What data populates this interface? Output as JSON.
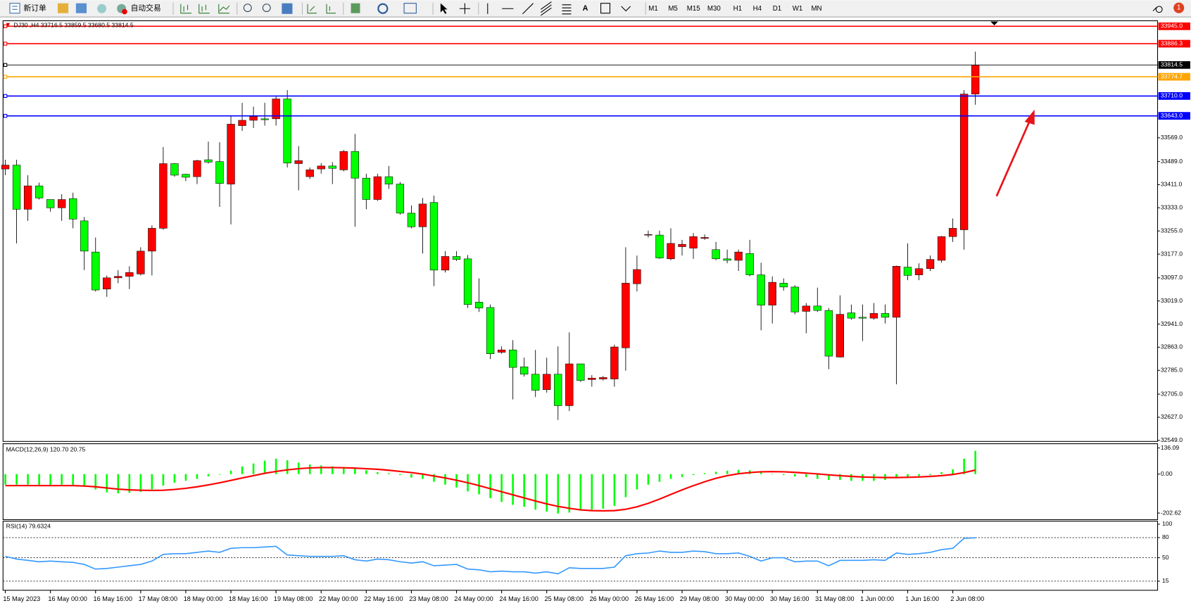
{
  "toolbar": {
    "new_order": "新订单",
    "auto_trading": "自动交易",
    "text_tool": "A",
    "timeframes": [
      "M1",
      "M5",
      "M15",
      "M30",
      "H1",
      "H4",
      "D1",
      "W1",
      "MN"
    ],
    "badge": "1"
  },
  "chart_data": [
    {
      "type": "candlestick",
      "title": "DJ30 ,H4  33716.5 33859.5 33680.5 33814.5",
      "categories": [
        "15 May 2023",
        null,
        null,
        null,
        "16 May 00:00",
        null,
        null,
        null,
        "16 May 16:00",
        null,
        null,
        null,
        "17 May 08:00",
        null,
        null,
        null,
        "18 May 00:00",
        null,
        null,
        null,
        "18 May 16:00",
        null,
        null,
        null,
        "19 May 08:00",
        null,
        null,
        null,
        "22 May 00:00",
        null,
        null,
        null,
        "22 May 16:00",
        null,
        null,
        null,
        "23 May 08:00",
        null,
        null,
        null,
        "24 May 00:00",
        null,
        null,
        null,
        "24 May 16:00",
        null,
        null,
        null,
        "25 May 08:00",
        null,
        null,
        null,
        "26 May 00:00",
        null,
        null,
        null,
        "26 May 16:00",
        null,
        null,
        null,
        "29 May 08:00",
        null,
        null,
        null,
        "30 May 00:00",
        null,
        null,
        null,
        "30 May 16:00",
        null,
        null,
        null,
        "31 May 08:00",
        null,
        null,
        null,
        "1 Jun 00:00",
        null,
        null,
        null,
        "1 Jun 16:00",
        null,
        null,
        null,
        "2 Jun 08:00",
        null,
        null
      ],
      "open": [
        33464,
        33477,
        33328,
        33407,
        33361,
        33333,
        33364,
        33289,
        33184,
        33059,
        33097,
        33102,
        33110,
        33187,
        33264,
        33482,
        33446,
        33438,
        33495,
        33489,
        33413,
        33610,
        33628,
        33633,
        33633,
        33700,
        33482,
        33438,
        33464,
        33474,
        33461,
        33523,
        33433,
        33361,
        33438,
        33413,
        33315,
        33269,
        33351,
        33123,
        33169,
        33161,
        33015,
        32997,
        32846,
        32854,
        32797,
        32772,
        32720,
        32772,
        32666,
        32807,
        32754,
        32756,
        32756,
        32861,
        33077,
        33241,
        33241,
        33161,
        33202,
        33197,
        33230,
        33192,
        33161,
        33156,
        33179,
        33107,
        33005,
        33079,
        33066,
        32984,
        33002,
        32987,
        32830,
        32979,
        32964,
        32961,
        32977,
        32964,
        33133,
        33107,
        33128,
        33156,
        33236,
        33259,
        33716.5
      ],
      "high": [
        33495,
        33495,
        33443,
        33418,
        33361,
        33379,
        33384,
        33302,
        33233,
        33105,
        33123,
        33136,
        33200,
        33274,
        33538,
        33484,
        33448,
        33495,
        33556,
        33554,
        33643,
        33687,
        33674,
        33687,
        33710,
        33730,
        33541,
        33469,
        33484,
        33487,
        33528,
        33582,
        33448,
        33448,
        33474,
        33420,
        33341,
        33366,
        33374,
        33187,
        33187,
        33174,
        33095,
        33007,
        32866,
        32887,
        32828,
        32854,
        32828,
        32866,
        32913,
        32807,
        32769,
        32766,
        32872,
        33200,
        33172,
        33256,
        33256,
        33264,
        33225,
        33248,
        33243,
        33218,
        33192,
        33192,
        33225,
        33148,
        33102,
        33095,
        33072,
        33012,
        33064,
        32995,
        33038,
        33007,
        33007,
        33012,
        33007,
        33138,
        33213,
        33146,
        33172,
        33238,
        33297,
        33730,
        33859.5
      ],
      "low": [
        33443,
        33213,
        33289,
        33361,
        33320,
        33289,
        33264,
        33123,
        33051,
        33033,
        33079,
        33059,
        33105,
        33105,
        33259,
        33438,
        33423,
        33413,
        33482,
        33336,
        33277,
        33592,
        33602,
        33610,
        33610,
        33469,
        33392,
        33430,
        33448,
        33413,
        33456,
        33269,
        33328,
        33356,
        33397,
        33310,
        33264,
        33179,
        33069,
        33115,
        33154,
        32995,
        32982,
        32823,
        32841,
        32687,
        32764,
        32695,
        32710,
        32618,
        32648,
        32746,
        32730,
        32751,
        32730,
        32784,
        33051,
        33233,
        33161,
        33156,
        33172,
        33161,
        33225,
        33156,
        33146,
        33120,
        33102,
        32920,
        32943,
        33054,
        32974,
        32910,
        32982,
        32789,
        32828,
        32956,
        32884,
        32956,
        32943,
        32738,
        33089,
        33089,
        33120,
        33148,
        33218,
        33192,
        33680.5
      ],
      "close": [
        33477,
        33328,
        33407,
        33366,
        33333,
        33361,
        33295,
        33187,
        33056,
        33097,
        33102,
        33115,
        33187,
        33264,
        33482,
        33443,
        33436,
        33492,
        33487,
        33415,
        33615,
        33628,
        33641,
        33630,
        33700,
        33484,
        33492,
        33461,
        33474,
        33466,
        33523,
        33433,
        33361,
        33438,
        33413,
        33315,
        33269,
        33346,
        33123,
        33169,
        33159,
        33007,
        32995,
        32841,
        32854,
        32795,
        32772,
        32718,
        32772,
        32666,
        32807,
        32751,
        32759,
        32761,
        32864,
        33079,
        33125,
        33243,
        33164,
        33213,
        33210,
        33236,
        33233,
        33161,
        33156,
        33184,
        33107,
        33005,
        33082,
        33066,
        32982,
        33002,
        32987,
        32833,
        32974,
        32961,
        32961,
        32977,
        32964,
        33136,
        33105,
        33128,
        33159,
        33236,
        33264,
        33716.5,
        33814.5
      ],
      "up_color": "#ff0000",
      "down_color": "#00ff00",
      "ylim": [
        32548,
        33961
      ],
      "yticks": [
        {
          "value": 33569,
          "label": "33569.0"
        },
        {
          "value": 33489,
          "label": "33489.0"
        },
        {
          "value": 33411,
          "label": "33411.0"
        },
        {
          "value": 33333,
          "label": "33333.0"
        },
        {
          "value": 33255,
          "label": "33255.0"
        },
        {
          "value": 33177,
          "label": "33177.0"
        },
        {
          "value": 33097,
          "label": "33097.0"
        },
        {
          "value": 33019,
          "label": "33019.0"
        },
        {
          "value": 32941,
          "label": "32941.0"
        },
        {
          "value": 32863,
          "label": "32863.0"
        },
        {
          "value": 32785,
          "label": "32785.0"
        },
        {
          "value": 32705,
          "label": "32705.0"
        },
        {
          "value": 32627,
          "label": "32627.0"
        },
        {
          "value": 32549,
          "label": "32549.0"
        }
      ],
      "levels": [
        {
          "value": 33945,
          "label": "33945.0",
          "color": "#ff0000"
        },
        {
          "value": 33886.3,
          "color": "#ff0000"
        },
        {
          "value": 33814.5,
          "color": "#000000"
        },
        {
          "value": 33774.7,
          "color": "#ffa500"
        },
        {
          "value": 33710,
          "label": "33710.0",
          "color": "#0000ff"
        },
        {
          "value": 33643,
          "label": "33643.0",
          "color": "#0000ff"
        }
      ]
    },
    {
      "type": "macd",
      "title": "MACD(12,26,9) 120.70 20.75",
      "histogram": {
        "color": "#00ff00",
        "values": [
          -55,
          -55,
          -55,
          -56,
          -56,
          -55,
          -57,
          -65,
          -80,
          -95,
          -100,
          -98,
          -92,
          -80,
          -60,
          -45,
          -35,
          -25,
          -12,
          -3,
          18,
          40,
          55,
          70,
          80,
          72,
          60,
          50,
          45,
          40,
          35,
          28,
          20,
          10,
          5,
          -5,
          -18,
          -25,
          -40,
          -55,
          -70,
          -90,
          -105,
          -125,
          -145,
          -160,
          -170,
          -185,
          -195,
          -205,
          -200,
          -190,
          -185,
          -180,
          -165,
          -120,
          -80,
          -55,
          -40,
          -25,
          -15,
          -5,
          5,
          12,
          18,
          22,
          20,
          10,
          0,
          -5,
          -12,
          -15,
          -25,
          -30,
          -30,
          -35,
          -35,
          -35,
          -30,
          -20,
          -15,
          -10,
          -5,
          10,
          25,
          80,
          120.7
        ]
      },
      "signal": {
        "color": "#ff0000",
        "values": [
          -60,
          -60,
          -60,
          -60,
          -60,
          -60,
          -60,
          -62,
          -66,
          -72,
          -78,
          -82,
          -84,
          -85,
          -84,
          -80,
          -74,
          -66,
          -56,
          -45,
          -33,
          -20,
          -8,
          4,
          14,
          22,
          28,
          32,
          34,
          34,
          33,
          31,
          28,
          25,
          20,
          14,
          8,
          0,
          -10,
          -20,
          -32,
          -45,
          -60,
          -76,
          -92,
          -108,
          -124,
          -140,
          -155,
          -168,
          -178,
          -186,
          -190,
          -191,
          -190,
          -183,
          -170,
          -152,
          -130,
          -106,
          -82,
          -60,
          -40,
          -22,
          -8,
          2,
          8,
          12,
          13,
          12,
          9,
          5,
          1,
          -4,
          -8,
          -12,
          -15,
          -17,
          -18,
          -18,
          -17,
          -15,
          -12,
          -8,
          -2,
          8,
          20.75
        ]
      },
      "ylim": [
        -233,
        154
      ],
      "yticks": [
        136.09,
        {
          "value": 0,
          "label": "0.00"
        },
        -202.62
      ]
    },
    {
      "type": "line",
      "title": "RSI(14) 79.6324",
      "color": "#3399ff",
      "values": [
        52,
        48,
        46,
        44,
        45,
        44,
        43,
        40,
        33,
        34,
        36,
        38,
        40,
        45,
        55,
        56,
        56,
        58,
        60,
        58,
        64,
        65,
        65,
        66,
        67,
        54,
        53,
        52,
        52,
        52,
        53,
        47,
        45,
        48,
        47,
        44,
        42,
        44,
        38,
        39,
        40,
        33,
        32,
        29,
        30,
        29,
        29,
        27,
        29,
        26,
        35,
        34,
        34,
        34,
        36,
        53,
        56,
        57,
        60,
        58,
        58,
        60,
        59,
        56,
        56,
        57,
        52,
        45,
        50,
        50,
        44,
        45,
        45,
        38,
        46,
        46,
        46,
        47,
        46,
        57,
        55,
        56,
        58,
        62,
        64,
        79,
        79.6324
      ],
      "ylim": [
        3.7,
        104.5
      ],
      "yticks": [
        100,
        80,
        50,
        15
      ],
      "levels": [
        80,
        50,
        15
      ]
    }
  ]
}
